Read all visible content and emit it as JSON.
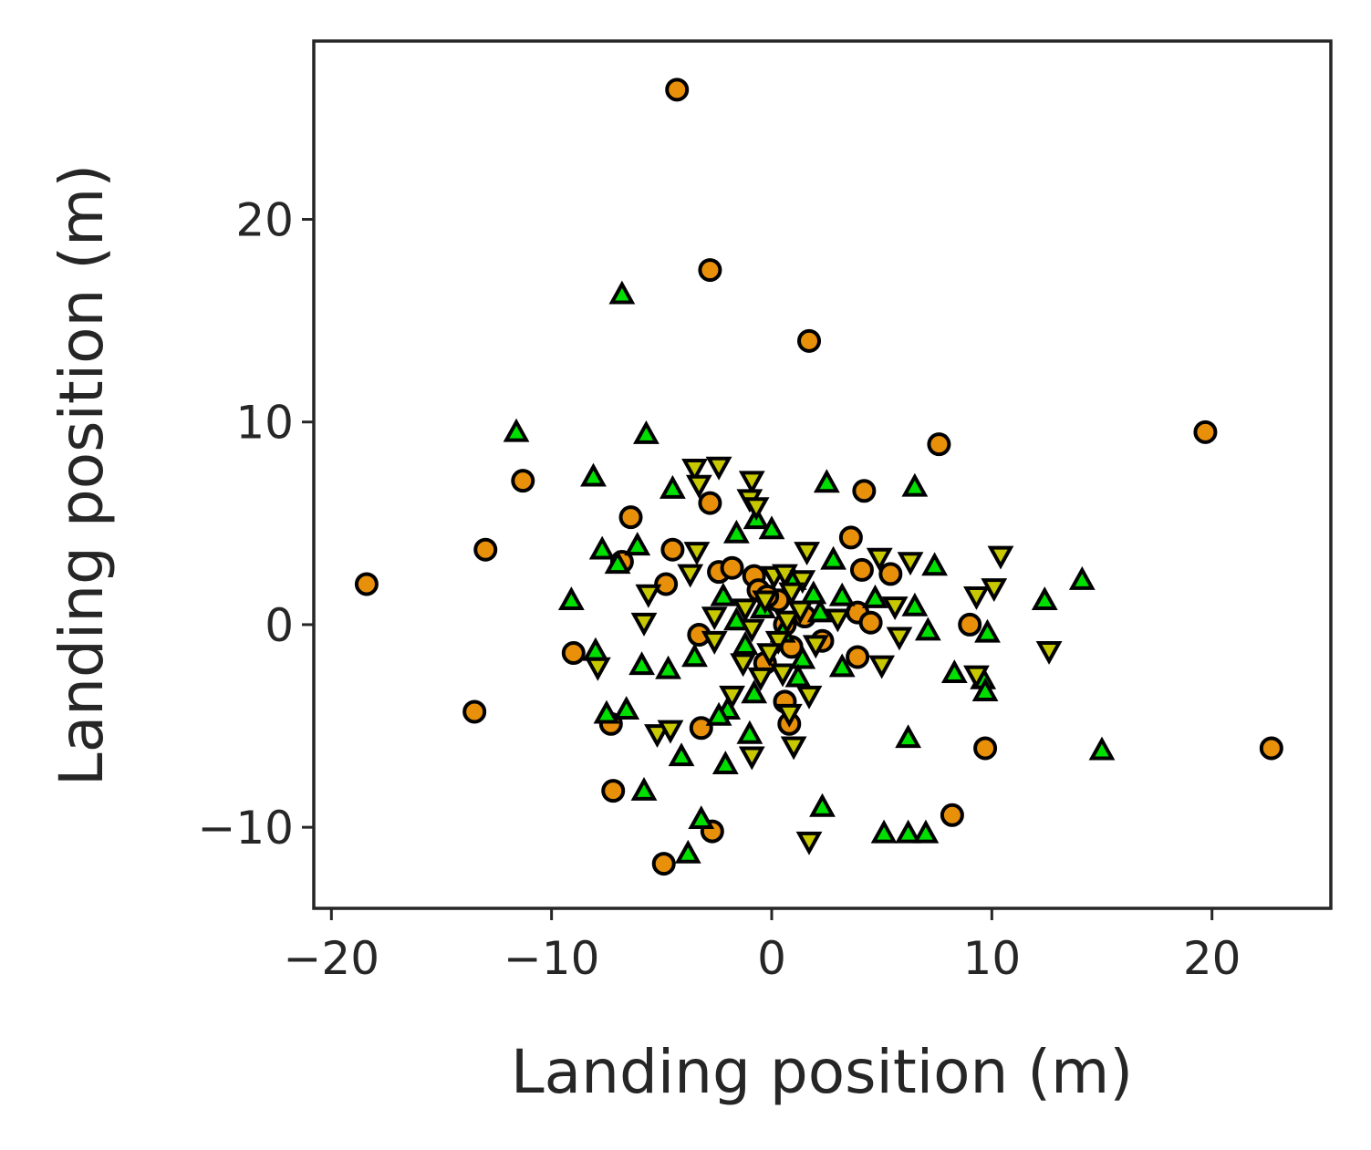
{
  "chart_data": {
    "type": "scatter",
    "title": "",
    "xlabel": "Landing position (m)",
    "ylabel": "Landing position (m)",
    "xlim": [
      -20.8,
      25.4
    ],
    "ylim": [
      -14.0,
      28.8
    ],
    "xticks": [
      -20,
      -10,
      0,
      10,
      20
    ],
    "yticks": [
      -10,
      0,
      10,
      20
    ],
    "xtick_labels": [
      "−20",
      "−10",
      "0",
      "10",
      "20"
    ],
    "ytick_labels": [
      "−10",
      "0",
      "10",
      "20"
    ],
    "grid": false,
    "legend": "none",
    "series": [
      {
        "marker": "circle",
        "color": "#e8900a",
        "points": [
          [
            -4.3,
            26.4
          ],
          [
            -2.8,
            17.5
          ],
          [
            1.7,
            14.0
          ],
          [
            19.7,
            9.5
          ],
          [
            7.6,
            8.9
          ],
          [
            -11.3,
            7.1
          ],
          [
            4.2,
            6.6
          ],
          [
            -2.8,
            6.0
          ],
          [
            -6.4,
            5.3
          ],
          [
            3.6,
            4.3
          ],
          [
            -13.0,
            3.7
          ],
          [
            -4.5,
            3.7
          ],
          [
            -6.8,
            3.1
          ],
          [
            4.1,
            2.7
          ],
          [
            5.4,
            2.5
          ],
          [
            -2.4,
            2.6
          ],
          [
            -1.8,
            2.8
          ],
          [
            -0.8,
            2.4
          ],
          [
            -18.4,
            2.0
          ],
          [
            -4.8,
            2.0
          ],
          [
            -0.6,
            1.7
          ],
          [
            0.3,
            1.2
          ],
          [
            3.9,
            0.6
          ],
          [
            4.5,
            0.1
          ],
          [
            9.0,
            0.0
          ],
          [
            0.6,
            0.0
          ],
          [
            -3.3,
            -0.5
          ],
          [
            2.3,
            -0.8
          ],
          [
            -9.0,
            -1.4
          ],
          [
            3.9,
            -1.6
          ],
          [
            -0.3,
            -1.9
          ],
          [
            0.6,
            -3.8
          ],
          [
            -13.5,
            -4.3
          ],
          [
            -7.3,
            -4.9
          ],
          [
            0.8,
            -4.9
          ],
          [
            -3.2,
            -5.1
          ],
          [
            9.7,
            -6.1
          ],
          [
            22.7,
            -6.1
          ],
          [
            -7.2,
            -8.2
          ],
          [
            8.2,
            -9.4
          ],
          [
            -2.7,
            -10.2
          ],
          [
            -4.9,
            -11.8
          ],
          [
            -0.2,
            1.4
          ],
          [
            1.5,
            0.4
          ],
          [
            0.9,
            -1.1
          ]
        ]
      },
      {
        "marker": "triangle-up",
        "color": "#00e000",
        "points": [
          [
            -6.8,
            16.3
          ],
          [
            -11.6,
            9.5
          ],
          [
            -5.7,
            9.4
          ],
          [
            -8.1,
            7.3
          ],
          [
            -4.5,
            6.7
          ],
          [
            2.5,
            7.0
          ],
          [
            6.5,
            6.8
          ],
          [
            -0.7,
            5.2
          ],
          [
            0.0,
            4.7
          ],
          [
            -1.6,
            4.5
          ],
          [
            -6.1,
            3.9
          ],
          [
            -7.7,
            3.7
          ],
          [
            -7.0,
            3.0
          ],
          [
            2.8,
            3.2
          ],
          [
            7.4,
            2.9
          ],
          [
            14.1,
            2.2
          ],
          [
            -9.1,
            1.2
          ],
          [
            12.4,
            1.2
          ],
          [
            3.2,
            1.4
          ],
          [
            4.7,
            1.3
          ],
          [
            -2.2,
            1.4
          ],
          [
            6.5,
            0.9
          ],
          [
            9.8,
            -0.4
          ],
          [
            7.1,
            -0.3
          ],
          [
            -8.0,
            -1.3
          ],
          [
            -5.9,
            -2.0
          ],
          [
            -3.5,
            -1.6
          ],
          [
            -4.7,
            -2.2
          ],
          [
            3.2,
            -2.1
          ],
          [
            -1.2,
            -1.0
          ],
          [
            8.3,
            -2.4
          ],
          [
            9.6,
            -2.7
          ],
          [
            9.7,
            -3.3
          ],
          [
            -0.8,
            -3.4
          ],
          [
            -2.0,
            -4.2
          ],
          [
            -2.4,
            -4.5
          ],
          [
            -6.6,
            -4.2
          ],
          [
            -7.5,
            -4.4
          ],
          [
            -1.0,
            -5.4
          ],
          [
            6.2,
            -5.6
          ],
          [
            15.0,
            -6.2
          ],
          [
            -4.1,
            -6.5
          ],
          [
            -2.1,
            -6.9
          ],
          [
            -5.8,
            -8.2
          ],
          [
            2.3,
            -9.0
          ],
          [
            -3.2,
            -9.6
          ],
          [
            -3.8,
            -11.3
          ],
          [
            5.1,
            -10.3
          ],
          [
            6.2,
            -10.3
          ],
          [
            7.0,
            -10.3
          ],
          [
            1.0,
            2.2
          ],
          [
            1.9,
            1.5
          ],
          [
            -0.4,
            0.8
          ],
          [
            0.5,
            -0.4
          ],
          [
            1.4,
            -1.7
          ],
          [
            -1.6,
            0.2
          ],
          [
            2.2,
            0.6
          ],
          [
            1.2,
            -2.6
          ]
        ]
      },
      {
        "marker": "triangle-down",
        "color": "#c8c800",
        "points": [
          [
            -3.5,
            7.7
          ],
          [
            -2.4,
            7.8
          ],
          [
            -3.3,
            6.9
          ],
          [
            -0.9,
            7.1
          ],
          [
            -1.0,
            6.2
          ],
          [
            -0.7,
            5.8
          ],
          [
            -3.4,
            3.6
          ],
          [
            1.6,
            3.6
          ],
          [
            4.9,
            3.3
          ],
          [
            6.3,
            3.1
          ],
          [
            10.4,
            3.4
          ],
          [
            -3.7,
            2.5
          ],
          [
            0.1,
            2.4
          ],
          [
            0.6,
            2.5
          ],
          [
            1.4,
            2.2
          ],
          [
            -5.6,
            1.5
          ],
          [
            9.3,
            1.4
          ],
          [
            10.1,
            1.8
          ],
          [
            5.6,
            0.9
          ],
          [
            -5.8,
            0.1
          ],
          [
            5.8,
            -0.6
          ],
          [
            -2.6,
            0.4
          ],
          [
            3.0,
            0.3
          ],
          [
            0.7,
            0.2
          ],
          [
            -1.2,
            0.8
          ],
          [
            -2.6,
            -0.8
          ],
          [
            12.6,
            -1.3
          ],
          [
            -7.9,
            -2.1
          ],
          [
            5.0,
            -2.0
          ],
          [
            9.3,
            -2.5
          ],
          [
            -1.3,
            -1.9
          ],
          [
            -0.5,
            -2.6
          ],
          [
            0.5,
            -2.4
          ],
          [
            1.7,
            -3.5
          ],
          [
            -1.8,
            -3.5
          ],
          [
            0.8,
            -4.4
          ],
          [
            -5.2,
            -5.4
          ],
          [
            -4.6,
            -5.2
          ],
          [
            -0.9,
            -6.5
          ],
          [
            1.0,
            -6.0
          ],
          [
            1.7,
            -10.7
          ],
          [
            -0.3,
            1.2
          ],
          [
            0.3,
            -0.8
          ],
          [
            1.3,
            0.7
          ],
          [
            -0.9,
            -0.2
          ],
          [
            2.0,
            -1.0
          ],
          [
            -0.1,
            -1.4
          ],
          [
            0.9,
            1.6
          ]
        ]
      }
    ]
  }
}
